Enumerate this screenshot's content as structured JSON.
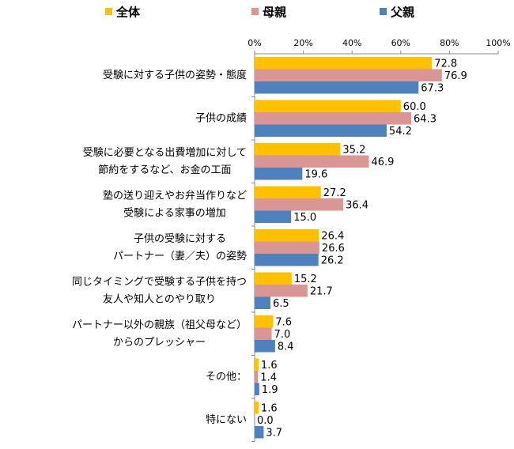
{
  "chart_data": {
    "type": "bar",
    "orientation": "horizontal",
    "categories": [
      [
        "受験に対する子供の姿勢・態度"
      ],
      [
        "子供の成績"
      ],
      [
        "受験に必要となる出費増加に対して",
        "節約をするなど、お金の工面"
      ],
      [
        "塾の送り迎えやお弁当作りなど",
        "受験による家事の増加"
      ],
      [
        "子供の受験に対する",
        "パートナー（妻／夫）の姿勢"
      ],
      [
        "同じタイミングで受験する子供を持つ",
        "友人や知人とのやり取り"
      ],
      [
        "パートナー以外の親族（祖父母など）",
        "からのプレッシャー"
      ],
      [
        "その他："
      ],
      [
        "特にない"
      ]
    ],
    "series": [
      {
        "name": "全体",
        "color": "#FFC000",
        "values": [
          72.8,
          60.0,
          35.2,
          27.2,
          26.4,
          15.2,
          7.6,
          1.6,
          1.6
        ],
        "value_labels": [
          "72.8",
          "60.0",
          "35.2",
          "27.2",
          "26.4",
          "15.2",
          "7.6",
          "1.6",
          "1.6"
        ]
      },
      {
        "name": "母親",
        "color": "#D99694",
        "values": [
          76.9,
          64.3,
          46.9,
          36.4,
          26.6,
          21.7,
          7.0,
          1.4,
          0.0
        ],
        "value_labels": [
          "76.9",
          "64.3",
          "46.9",
          "36.4",
          "26.6",
          "21.7",
          "7.0",
          "1.4",
          "0.0"
        ]
      },
      {
        "name": "父親",
        "color": "#4F81BD",
        "values": [
          67.3,
          54.2,
          19.6,
          15.0,
          26.2,
          6.5,
          8.4,
          1.9,
          3.7
        ],
        "value_labels": [
          "67.3",
          "54.2",
          "19.6",
          "15.0",
          "26.2",
          "6.5",
          "8.4",
          "1.9",
          "3.7"
        ]
      }
    ],
    "xlim": [
      0,
      100
    ],
    "xticks": [
      {
        "value": 0,
        "label": "0%"
      },
      {
        "value": 20,
        "label": "20%"
      },
      {
        "value": 40,
        "label": "40%"
      },
      {
        "value": 60,
        "label": "60%"
      },
      {
        "value": 80,
        "label": "80%"
      },
      {
        "value": 100,
        "label": "100%"
      }
    ],
    "legend": "top"
  }
}
